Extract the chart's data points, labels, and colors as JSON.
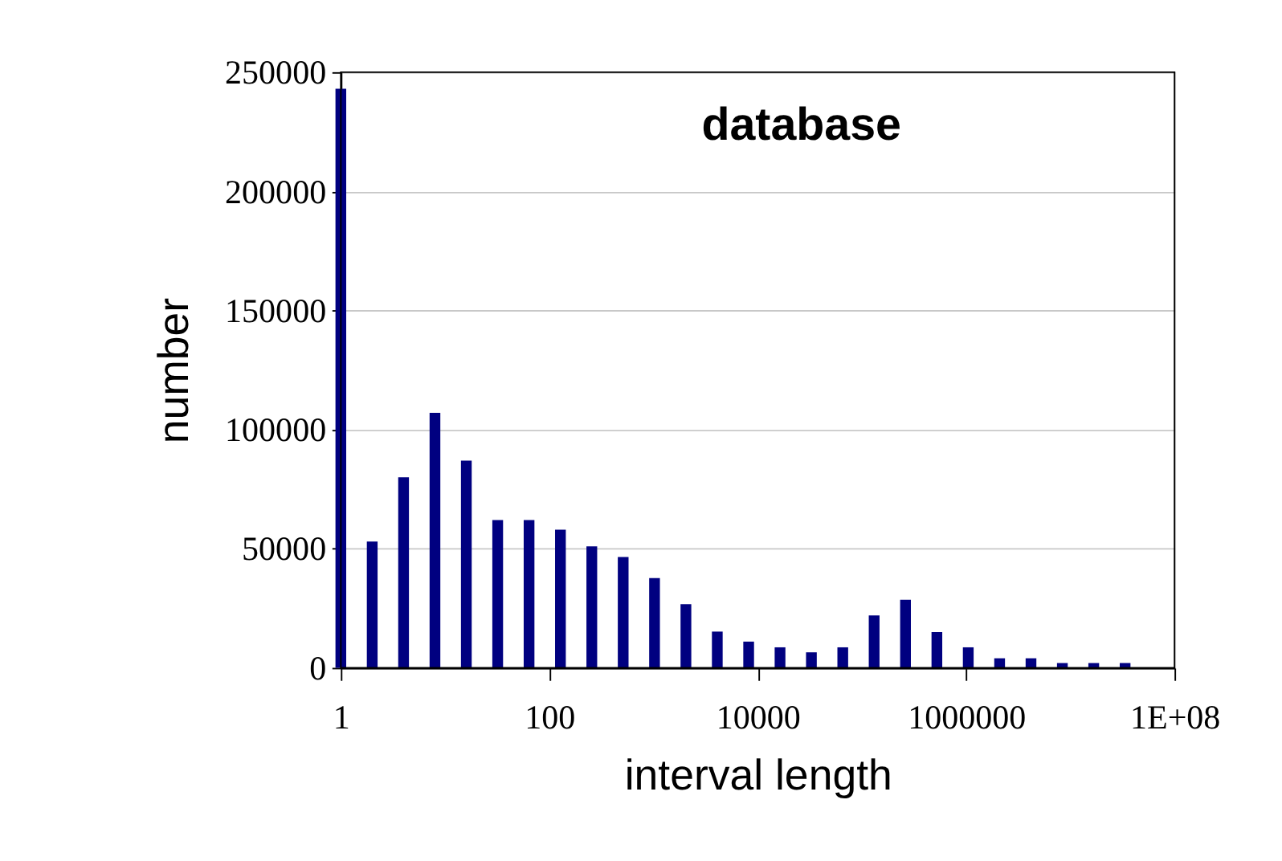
{
  "chart_data": {
    "type": "bar",
    "title": "database",
    "xlabel": "interval length",
    "ylabel": "number",
    "x": [
      1,
      2,
      4,
      8,
      16,
      32,
      64,
      128,
      256,
      512,
      1024,
      2048,
      4096,
      8192,
      16384,
      32768,
      65536,
      131072,
      262144,
      524288,
      1048576,
      2097152,
      4194304,
      8388608,
      16777216,
      33554432
    ],
    "values": [
      243000,
      53000,
      80000,
      107000,
      87000,
      62000,
      62000,
      58000,
      51000,
      46500,
      37700,
      26700,
      15200,
      11000,
      8600,
      6500,
      8600,
      22000,
      28600,
      15000,
      8600,
      4000,
      4000,
      2000,
      2000,
      2000
    ],
    "color": "#000080",
    "log": "x",
    "xlim": [
      1,
      100000000
    ],
    "xticks": [
      1,
      100,
      10000,
      1000000,
      {
        "value": 100000000,
        "label": "1E+08"
      }
    ],
    "ylim": [
      0,
      250000
    ],
    "yticks": [
      0,
      50000,
      100000,
      150000,
      200000,
      250000
    ],
    "grid": "y"
  }
}
